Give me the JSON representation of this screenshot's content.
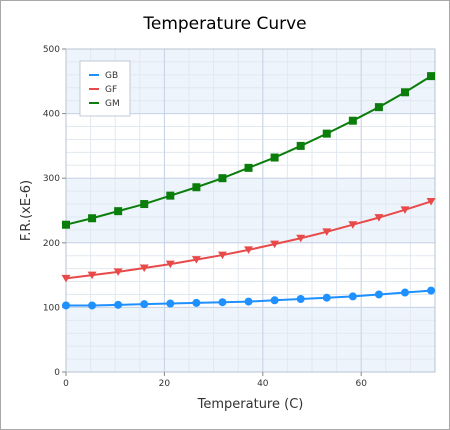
{
  "chart_data": {
    "type": "line",
    "title": "Temperature Curve",
    "xlabel": "Temperature (C)",
    "ylabel": "F.R.(xE-6)",
    "xlim": [
      0,
      75
    ],
    "ylim": [
      0,
      500
    ],
    "x_ticks": [
      0,
      20,
      40,
      60
    ],
    "y_ticks": [
      0,
      100,
      200,
      300,
      400,
      500
    ],
    "grid": true,
    "legend_position": "top-left",
    "x": [
      0,
      5.3,
      10.6,
      15.9,
      21.2,
      26.5,
      31.8,
      37.1,
      42.4,
      47.7,
      53,
      58.3,
      63.6,
      68.9,
      74.2
    ],
    "series": [
      {
        "name": "GB",
        "color": "#1e90ff",
        "marker": "circle",
        "values": [
          103,
          103,
          104,
          105,
          106,
          107,
          108,
          109,
          111,
          113,
          115,
          117,
          120,
          123,
          126
        ]
      },
      {
        "name": "GF",
        "color": "#e84a4a",
        "marker": "triangle-down",
        "values": [
          145,
          150,
          155,
          161,
          167,
          174,
          181,
          189,
          198,
          207,
          217,
          228,
          239,
          251,
          264
        ]
      },
      {
        "name": "GM",
        "color": "#0a7d0a",
        "marker": "square",
        "values": [
          228,
          238,
          249,
          260,
          273,
          286,
          300,
          316,
          332,
          350,
          369,
          389,
          410,
          433,
          458
        ]
      }
    ]
  }
}
